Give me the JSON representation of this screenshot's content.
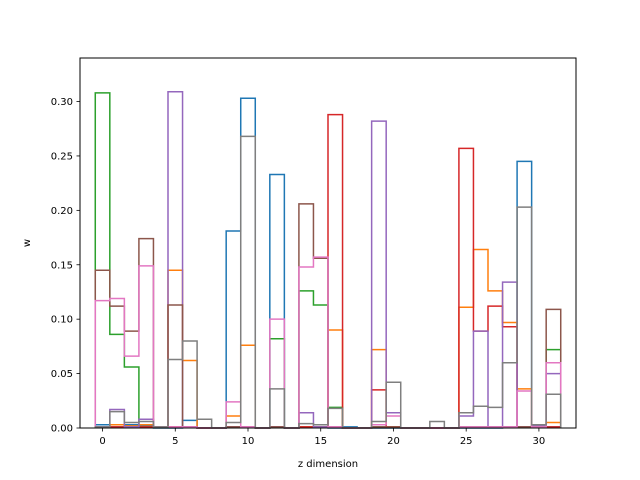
{
  "chart_data": {
    "type": "step",
    "xlabel": "z dimension",
    "ylabel": "w",
    "xlim": [
      -1.55,
      32.55
    ],
    "ylim": [
      0,
      0.34
    ],
    "x_ticks": [
      0,
      5,
      10,
      15,
      20,
      25,
      30
    ],
    "x_tick_labels": [
      "0",
      "5",
      "10",
      "15",
      "20",
      "25",
      "30"
    ],
    "y_ticks": [
      0.0,
      0.05,
      0.1,
      0.15,
      0.2,
      0.25,
      0.3
    ],
    "y_tick_labels": [
      "0.00",
      "0.05",
      "0.10",
      "0.15",
      "0.20",
      "0.25",
      "0.30"
    ],
    "bin_edges": [
      0,
      1,
      2,
      3,
      4,
      5,
      6,
      7,
      8,
      9,
      10,
      11,
      12,
      13,
      14,
      15,
      16,
      17,
      18,
      19,
      20,
      21,
      22,
      23,
      24,
      25,
      26,
      27,
      28,
      29,
      30,
      31
    ],
    "series": [
      {
        "color": "#1f77b4",
        "values": [
          0.003,
          0.001,
          0.003,
          0.002,
          0,
          0,
          0.007,
          0,
          0,
          0.181,
          0.303,
          0,
          0.233,
          0,
          0.001,
          0.001,
          0,
          0.001,
          0,
          0,
          0,
          0,
          0,
          0,
          0,
          0,
          0,
          0,
          0.001,
          0.245,
          0.003,
          0.001
        ]
      },
      {
        "color": "#ff7f0e",
        "values": [
          0.001,
          0.003,
          0.002,
          0.003,
          0.001,
          0.145,
          0.062,
          0,
          0,
          0.011,
          0.076,
          0,
          0.001,
          0,
          0.001,
          0.001,
          0.09,
          0,
          0,
          0.072,
          0.001,
          0,
          0,
          0,
          0,
          0.111,
          0.164,
          0.126,
          0.097,
          0.036,
          0.001,
          0.005
        ]
      },
      {
        "color": "#2ca02c",
        "values": [
          0.308,
          0.086,
          0.056,
          0.001,
          0.001,
          0.001,
          0.001,
          0,
          0,
          0.001,
          0.001,
          0,
          0.082,
          0,
          0.126,
          0.113,
          0.019,
          0,
          0,
          0.001,
          0.001,
          0,
          0,
          0,
          0,
          0.001,
          0.001,
          0.001,
          0.001,
          0.001,
          0.002,
          0.072
        ]
      },
      {
        "color": "#d62728",
        "values": [
          0.001,
          0.001,
          0.001,
          0.001,
          0.001,
          0.001,
          0.001,
          0,
          0,
          0.001,
          0.001,
          0,
          0.001,
          0,
          0.001,
          0.001,
          0.288,
          0,
          0,
          0.035,
          0.001,
          0,
          0,
          0,
          0,
          0.257,
          0.089,
          0.112,
          0.093,
          0.001,
          0.001,
          0.001
        ]
      },
      {
        "color": "#9467bd",
        "values": [
          0.001,
          0.017,
          0.001,
          0.008,
          0.001,
          0.309,
          0.001,
          0,
          0,
          0.001,
          0.001,
          0,
          0.001,
          0,
          0.014,
          0.001,
          0.001,
          0,
          0,
          0.282,
          0.014,
          0,
          0,
          0,
          0,
          0.011,
          0.089,
          0.001,
          0.134,
          0.001,
          0.002,
          0.05
        ]
      },
      {
        "color": "#8c564b",
        "values": [
          0.145,
          0.112,
          0.089,
          0.174,
          0.001,
          0.113,
          0.001,
          0,
          0,
          0.001,
          0.001,
          0,
          0.001,
          0,
          0.206,
          0.156,
          0.001,
          0,
          0,
          0.001,
          0.001,
          0,
          0,
          0,
          0,
          0.001,
          0.001,
          0.001,
          0.001,
          0.001,
          0.001,
          0.109
        ]
      },
      {
        "color": "#e377c2",
        "values": [
          0.117,
          0.119,
          0.066,
          0.149,
          0.001,
          0.001,
          0.001,
          0,
          0,
          0.024,
          0.001,
          0,
          0.1,
          0,
          0.148,
          0.157,
          0.001,
          0,
          0,
          0.003,
          0.011,
          0,
          0,
          0,
          0,
          0.001,
          0.001,
          0.001,
          0.001,
          0.034,
          0.001,
          0.06
        ]
      },
      {
        "color": "#7f7f7f",
        "values": [
          0.001,
          0.015,
          0.005,
          0.006,
          0.001,
          0.063,
          0.08,
          0.008,
          0,
          0.005,
          0.268,
          0,
          0.036,
          0,
          0.004,
          0.003,
          0.018,
          0,
          0,
          0.006,
          0.042,
          0,
          0,
          0.006,
          0,
          0.014,
          0.02,
          0.019,
          0.06,
          0.203,
          0.003,
          0.031
        ]
      }
    ]
  }
}
